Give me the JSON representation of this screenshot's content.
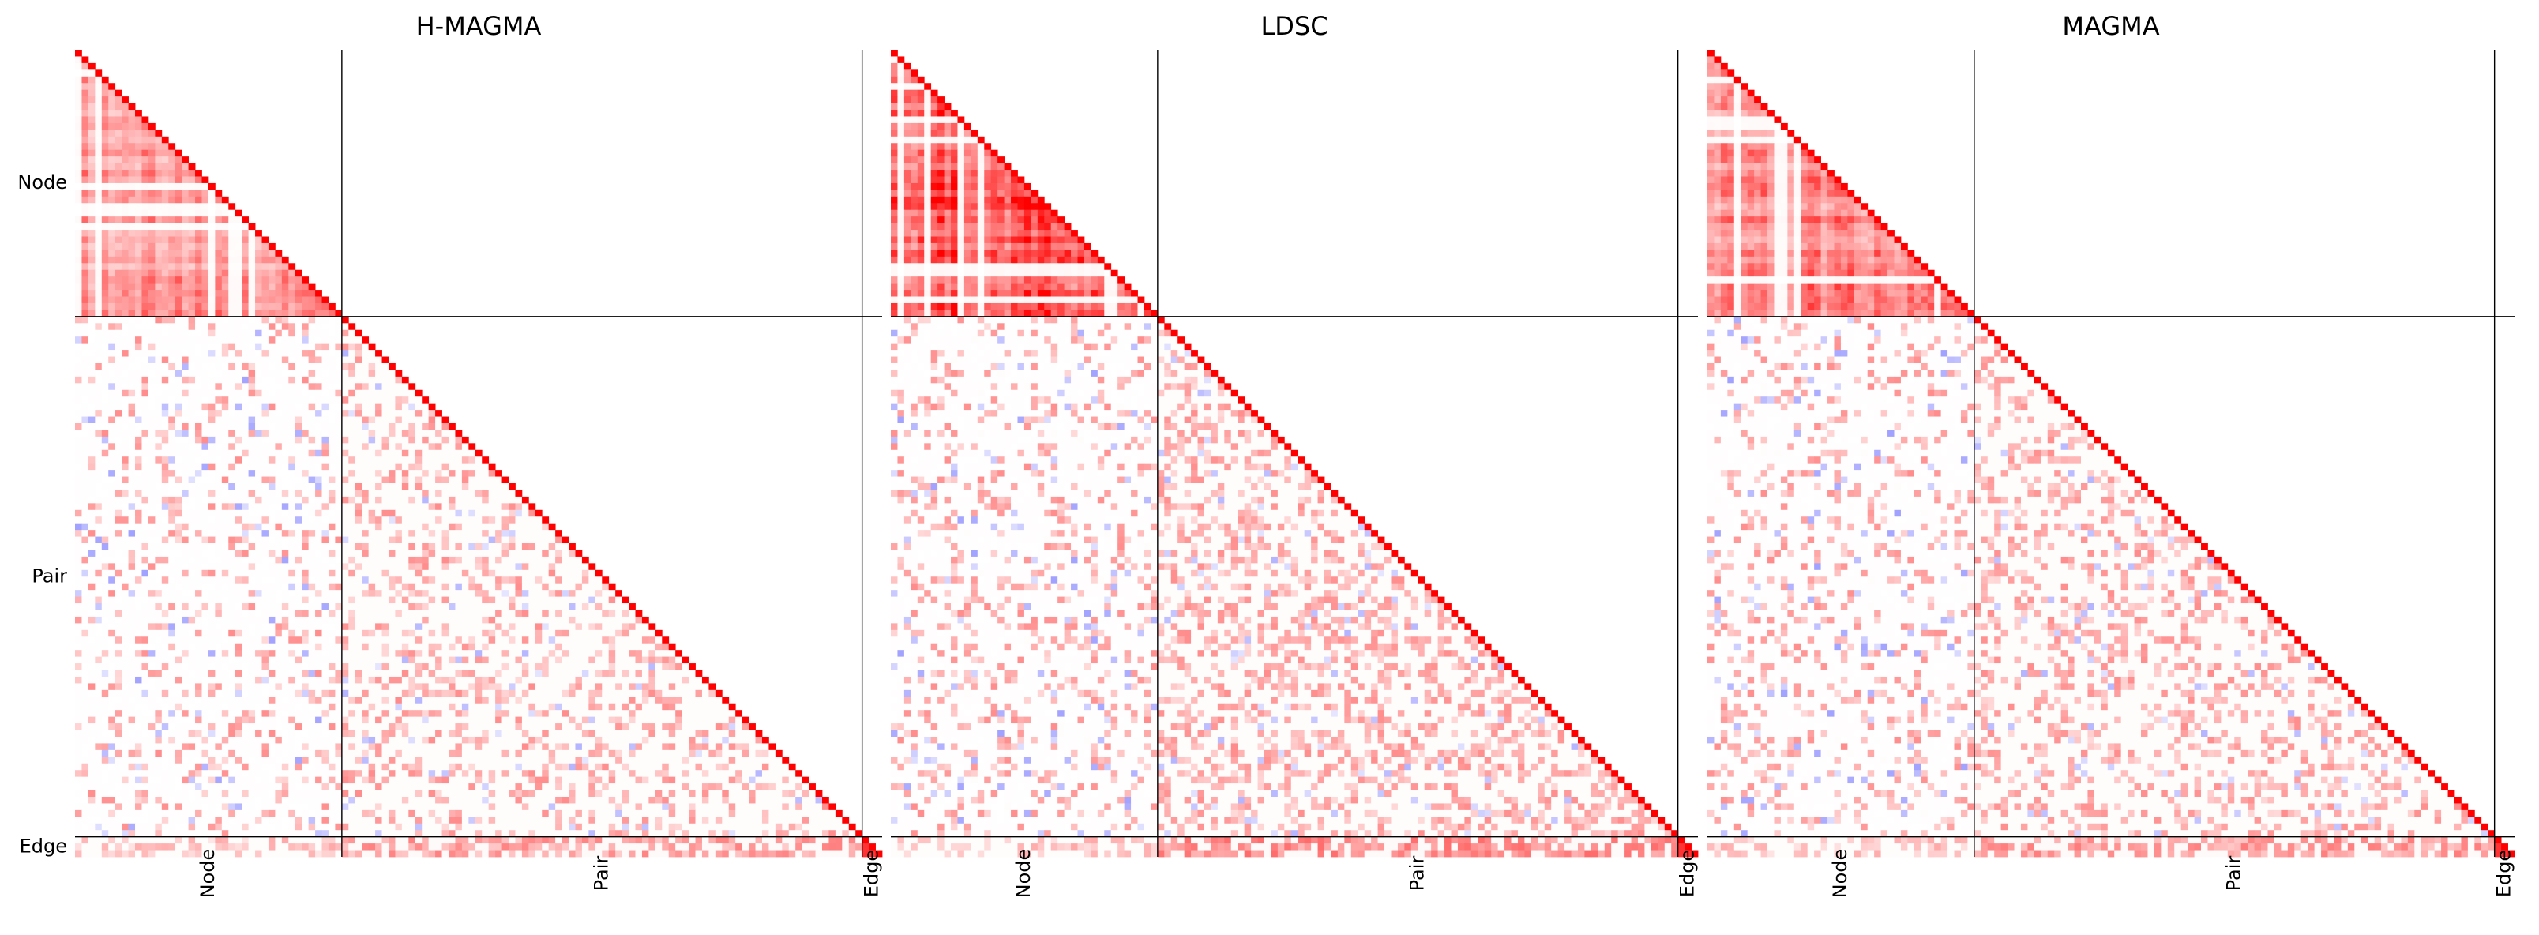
{
  "chart_data": [
    {
      "type": "heatmap",
      "title": "H-MAGMA",
      "row_labels": [
        "Node",
        "Pair",
        "Edge"
      ],
      "col_labels": [
        "Node",
        "Pair",
        "Edge"
      ],
      "block_sizes": [
        40,
        78,
        3
      ],
      "shape": "lower-triangular",
      "diagonal_value": 1.0,
      "colormap": "bwr",
      "vmin": -1,
      "vmax": 1,
      "block_means": {
        "node_node": 0.33,
        "pair_node": 0.04,
        "pair_pair": 0.06,
        "edge_node": 0.1,
        "edge_pair": 0.2
      },
      "grid": false
    },
    {
      "type": "heatmap",
      "title": "LDSC",
      "row_labels": [
        "Node",
        "Pair",
        "Edge"
      ],
      "col_labels": [
        "Node",
        "Pair",
        "Edge"
      ],
      "block_sizes": [
        40,
        78,
        3
      ],
      "shape": "lower-triangular",
      "diagonal_value": 1.0,
      "colormap": "bwr",
      "vmin": -1,
      "vmax": 1,
      "block_means": {
        "node_node": 0.6,
        "pair_node": 0.05,
        "pair_pair": 0.15,
        "edge_node": 0.12,
        "edge_pair": 0.28
      },
      "grid": false
    },
    {
      "type": "heatmap",
      "title": "MAGMA",
      "row_labels": [
        "Node",
        "Pair",
        "Edge"
      ],
      "col_labels": [
        "Node",
        "Pair",
        "Edge"
      ],
      "block_sizes": [
        40,
        78,
        3
      ],
      "shape": "lower-triangular",
      "diagonal_value": 1.0,
      "colormap": "bwr",
      "vmin": -1,
      "vmax": 1,
      "block_means": {
        "node_node": 0.38,
        "pair_node": 0.05,
        "pair_pair": 0.08,
        "edge_node": 0.1,
        "edge_pair": 0.22
      },
      "grid": false
    }
  ],
  "colors": {
    "positive": "#ff0000",
    "negative": "#0000ff",
    "zero": "#ffffff",
    "divider": "#000000"
  }
}
